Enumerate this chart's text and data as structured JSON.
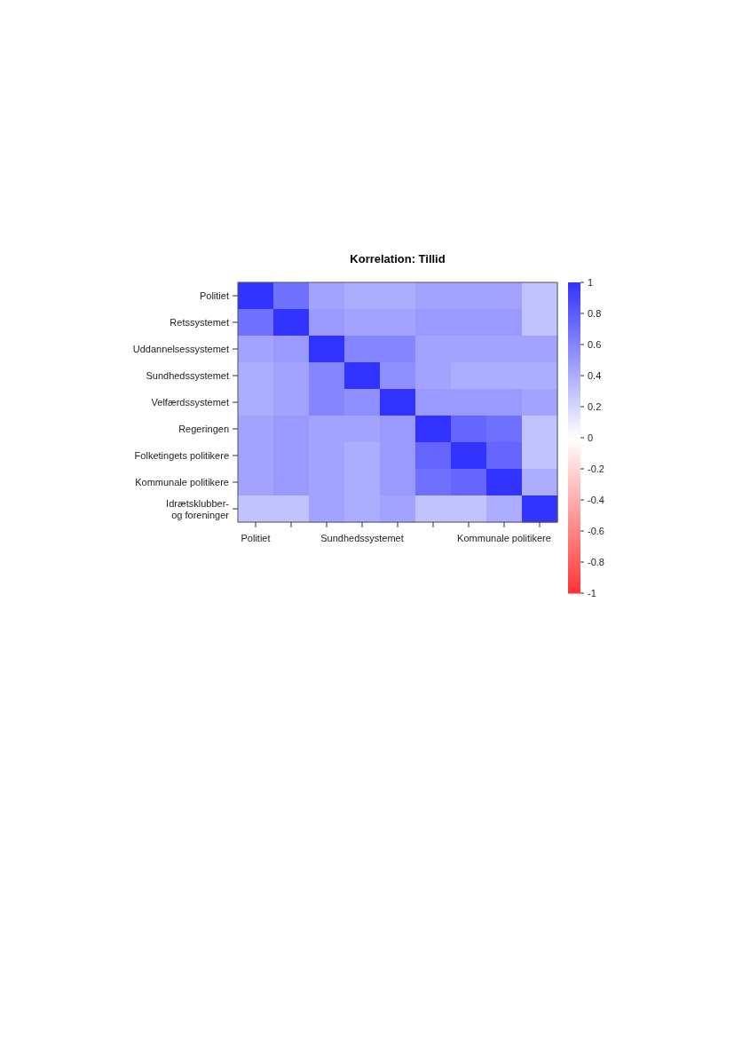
{
  "chart_data": {
    "type": "heatmap",
    "title": "Korrelation: Tillid",
    "categories": [
      "Politiet",
      null,
      null,
      "Sundhedssystemet",
      null,
      null,
      null,
      "Kommunale politikere",
      null
    ],
    "y_categories": [
      "Politiet",
      "Retssystemet",
      "Uddannelsessystemet",
      "Sundhedssystemet",
      "Velfærdssystemet",
      "Regeringen",
      "Folketingets politikere",
      "Kommunale politikere",
      "Idrætsklubber-\nog foreninger"
    ],
    "cells": [
      [
        1,
        0.7,
        0.45,
        0.4,
        0.4,
        0.45,
        0.45,
        0.45,
        0.3
      ],
      [
        0.7,
        1,
        0.5,
        0.45,
        0.45,
        0.5,
        0.5,
        0.5,
        0.3
      ],
      [
        0.45,
        0.5,
        1,
        0.6,
        0.6,
        0.45,
        0.45,
        0.45,
        0.45
      ],
      [
        0.4,
        0.45,
        0.6,
        1,
        0.55,
        0.45,
        0.4,
        0.4,
        0.4
      ],
      [
        0.4,
        0.45,
        0.6,
        0.55,
        1,
        0.5,
        0.5,
        0.5,
        0.45
      ],
      [
        0.45,
        0.5,
        0.45,
        0.45,
        0.5,
        1,
        0.75,
        0.7,
        0.3
      ],
      [
        0.45,
        0.5,
        0.45,
        0.4,
        0.5,
        0.75,
        1,
        0.75,
        0.3
      ],
      [
        0.45,
        0.5,
        0.45,
        0.4,
        0.5,
        0.7,
        0.75,
        1,
        0.4
      ],
      [
        0.3,
        0.3,
        0.45,
        0.4,
        0.45,
        0.3,
        0.3,
        0.4,
        1
      ]
    ],
    "clim": [
      -1,
      1
    ],
    "cticks": [
      -1,
      -0.8,
      -0.6,
      -0.4,
      -0.2,
      0,
      0.2,
      0.4,
      0.6,
      0.8,
      1
    ]
  }
}
